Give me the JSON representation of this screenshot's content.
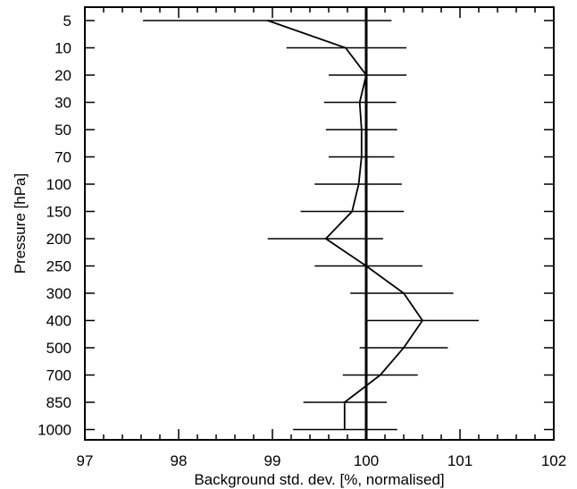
{
  "chart_data": {
    "type": "line",
    "title": "",
    "xlabel": "Background std. dev. [%, normalised]",
    "ylabel": "Pressure [hPa]",
    "xlim": [
      97,
      102
    ],
    "x_ticks": [
      97,
      98,
      99,
      100,
      101,
      102
    ],
    "x_minor_step": 0.2,
    "y_axis": "categorical pressure levels, top to bottom",
    "grid": false,
    "legend": "none",
    "reference_line": {
      "x": 100
    },
    "categories": [
      "5",
      "10",
      "20",
      "30",
      "50",
      "70",
      "100",
      "150",
      "200",
      "250",
      "300",
      "400",
      "500",
      "700",
      "850",
      "1000"
    ],
    "series": [
      {
        "values": [
          98.95,
          99.78,
          100.0,
          99.93,
          99.95,
          99.95,
          99.92,
          99.85,
          99.57,
          100.0,
          100.4,
          100.6,
          100.4,
          100.15,
          99.77,
          99.77
        ],
        "err_low": [
          97.62,
          99.15,
          99.6,
          99.55,
          99.57,
          99.6,
          99.45,
          99.3,
          98.95,
          99.45,
          99.83,
          100.0,
          99.93,
          99.75,
          99.33,
          99.22
        ],
        "err_high": [
          100.27,
          100.43,
          100.43,
          100.32,
          100.33,
          100.3,
          100.38,
          100.4,
          100.18,
          100.6,
          100.93,
          101.2,
          100.87,
          100.55,
          100.22,
          100.33
        ]
      }
    ]
  }
}
